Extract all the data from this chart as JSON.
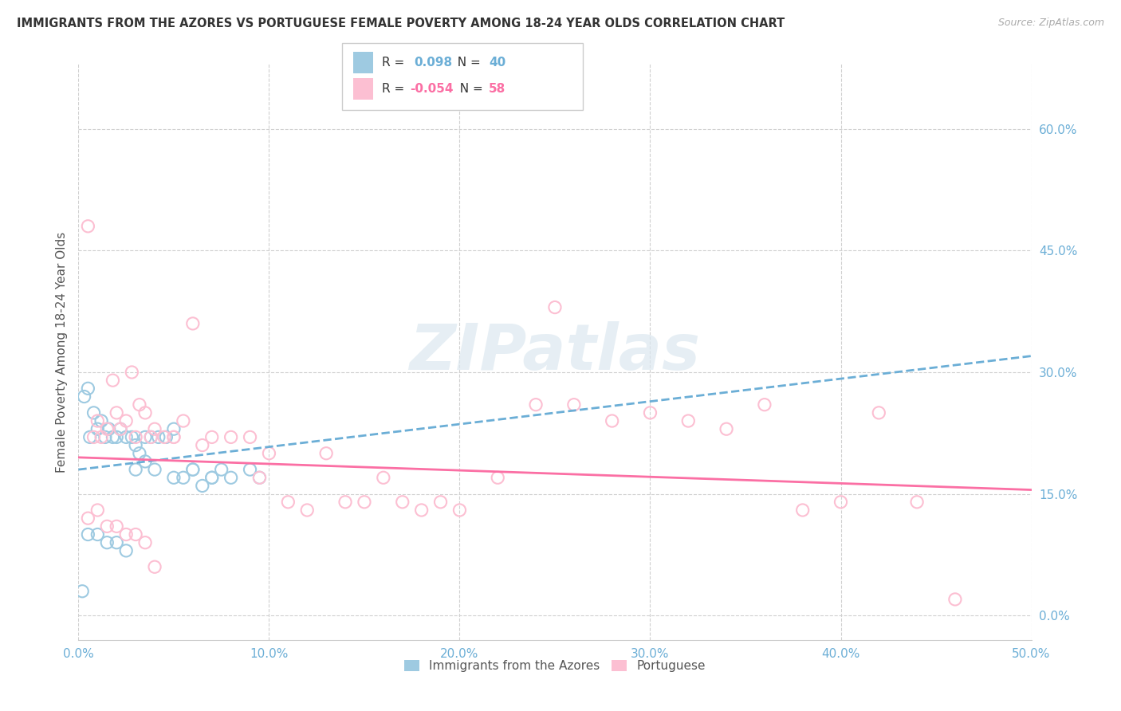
{
  "title": "IMMIGRANTS FROM THE AZORES VS PORTUGUESE FEMALE POVERTY AMONG 18-24 YEAR OLDS CORRELATION CHART",
  "source": "Source: ZipAtlas.com",
  "xlabel_blue": "Immigrants from the Azores",
  "xlabel_pink": "Portuguese",
  "ylabel": "Female Poverty Among 18-24 Year Olds",
  "xlim": [
    0.0,
    0.5
  ],
  "ylim": [
    -0.03,
    0.68
  ],
  "xticks": [
    0.0,
    0.1,
    0.2,
    0.3,
    0.4,
    0.5
  ],
  "yticks_right": [
    0.0,
    0.15,
    0.3,
    0.45,
    0.6
  ],
  "ytick_labels_right": [
    "0.0%",
    "15.0%",
    "30.0%",
    "45.0%",
    "60.0%"
  ],
  "xtick_labels": [
    "0.0%",
    "10.0%",
    "20.0%",
    "30.0%",
    "40.0%",
    "50.0%"
  ],
  "r_blue": 0.098,
  "n_blue": 40,
  "r_pink": -0.054,
  "n_pink": 58,
  "color_blue": "#9ecae1",
  "color_pink": "#fcbfd2",
  "color_blue_line": "#6baed6",
  "color_pink_line": "#fb6fa4",
  "color_tick_label": "#6baed6",
  "watermark": "ZIPatlas",
  "blue_points_x": [
    0.003,
    0.005,
    0.006,
    0.008,
    0.01,
    0.012,
    0.014,
    0.016,
    0.018,
    0.02,
    0.022,
    0.025,
    0.028,
    0.03,
    0.032,
    0.035,
    0.038,
    0.042,
    0.046,
    0.05,
    0.055,
    0.06,
    0.065,
    0.07,
    0.075,
    0.08,
    0.09,
    0.095,
    0.005,
    0.01,
    0.015,
    0.02,
    0.025,
    0.03,
    0.035,
    0.04,
    0.05,
    0.06,
    0.07,
    0.002
  ],
  "blue_points_y": [
    0.27,
    0.28,
    0.22,
    0.25,
    0.23,
    0.24,
    0.22,
    0.23,
    0.22,
    0.22,
    0.23,
    0.22,
    0.22,
    0.21,
    0.2,
    0.22,
    0.22,
    0.22,
    0.22,
    0.23,
    0.17,
    0.18,
    0.16,
    0.17,
    0.18,
    0.17,
    0.18,
    0.17,
    0.1,
    0.1,
    0.09,
    0.09,
    0.08,
    0.18,
    0.19,
    0.18,
    0.17,
    0.18,
    0.17,
    0.03
  ],
  "pink_points_x": [
    0.005,
    0.008,
    0.01,
    0.012,
    0.015,
    0.018,
    0.02,
    0.022,
    0.025,
    0.028,
    0.03,
    0.032,
    0.035,
    0.038,
    0.04,
    0.045,
    0.05,
    0.055,
    0.06,
    0.065,
    0.07,
    0.08,
    0.09,
    0.095,
    0.1,
    0.11,
    0.12,
    0.13,
    0.14,
    0.15,
    0.16,
    0.17,
    0.18,
    0.19,
    0.2,
    0.22,
    0.24,
    0.26,
    0.28,
    0.3,
    0.32,
    0.34,
    0.36,
    0.38,
    0.4,
    0.42,
    0.44,
    0.46,
    0.005,
    0.01,
    0.015,
    0.02,
    0.025,
    0.03,
    0.035,
    0.04,
    0.05,
    0.25
  ],
  "pink_points_y": [
    0.48,
    0.22,
    0.24,
    0.22,
    0.23,
    0.29,
    0.25,
    0.23,
    0.24,
    0.3,
    0.22,
    0.26,
    0.25,
    0.22,
    0.23,
    0.22,
    0.22,
    0.24,
    0.36,
    0.21,
    0.22,
    0.22,
    0.22,
    0.17,
    0.2,
    0.14,
    0.13,
    0.2,
    0.14,
    0.14,
    0.17,
    0.14,
    0.13,
    0.14,
    0.13,
    0.17,
    0.26,
    0.26,
    0.24,
    0.25,
    0.24,
    0.23,
    0.26,
    0.13,
    0.14,
    0.25,
    0.14,
    0.02,
    0.12,
    0.13,
    0.11,
    0.11,
    0.1,
    0.1,
    0.09,
    0.06,
    0.22,
    0.38
  ],
  "blue_trendline": [
    0.18,
    0.32
  ],
  "pink_trendline": [
    0.195,
    0.155
  ]
}
